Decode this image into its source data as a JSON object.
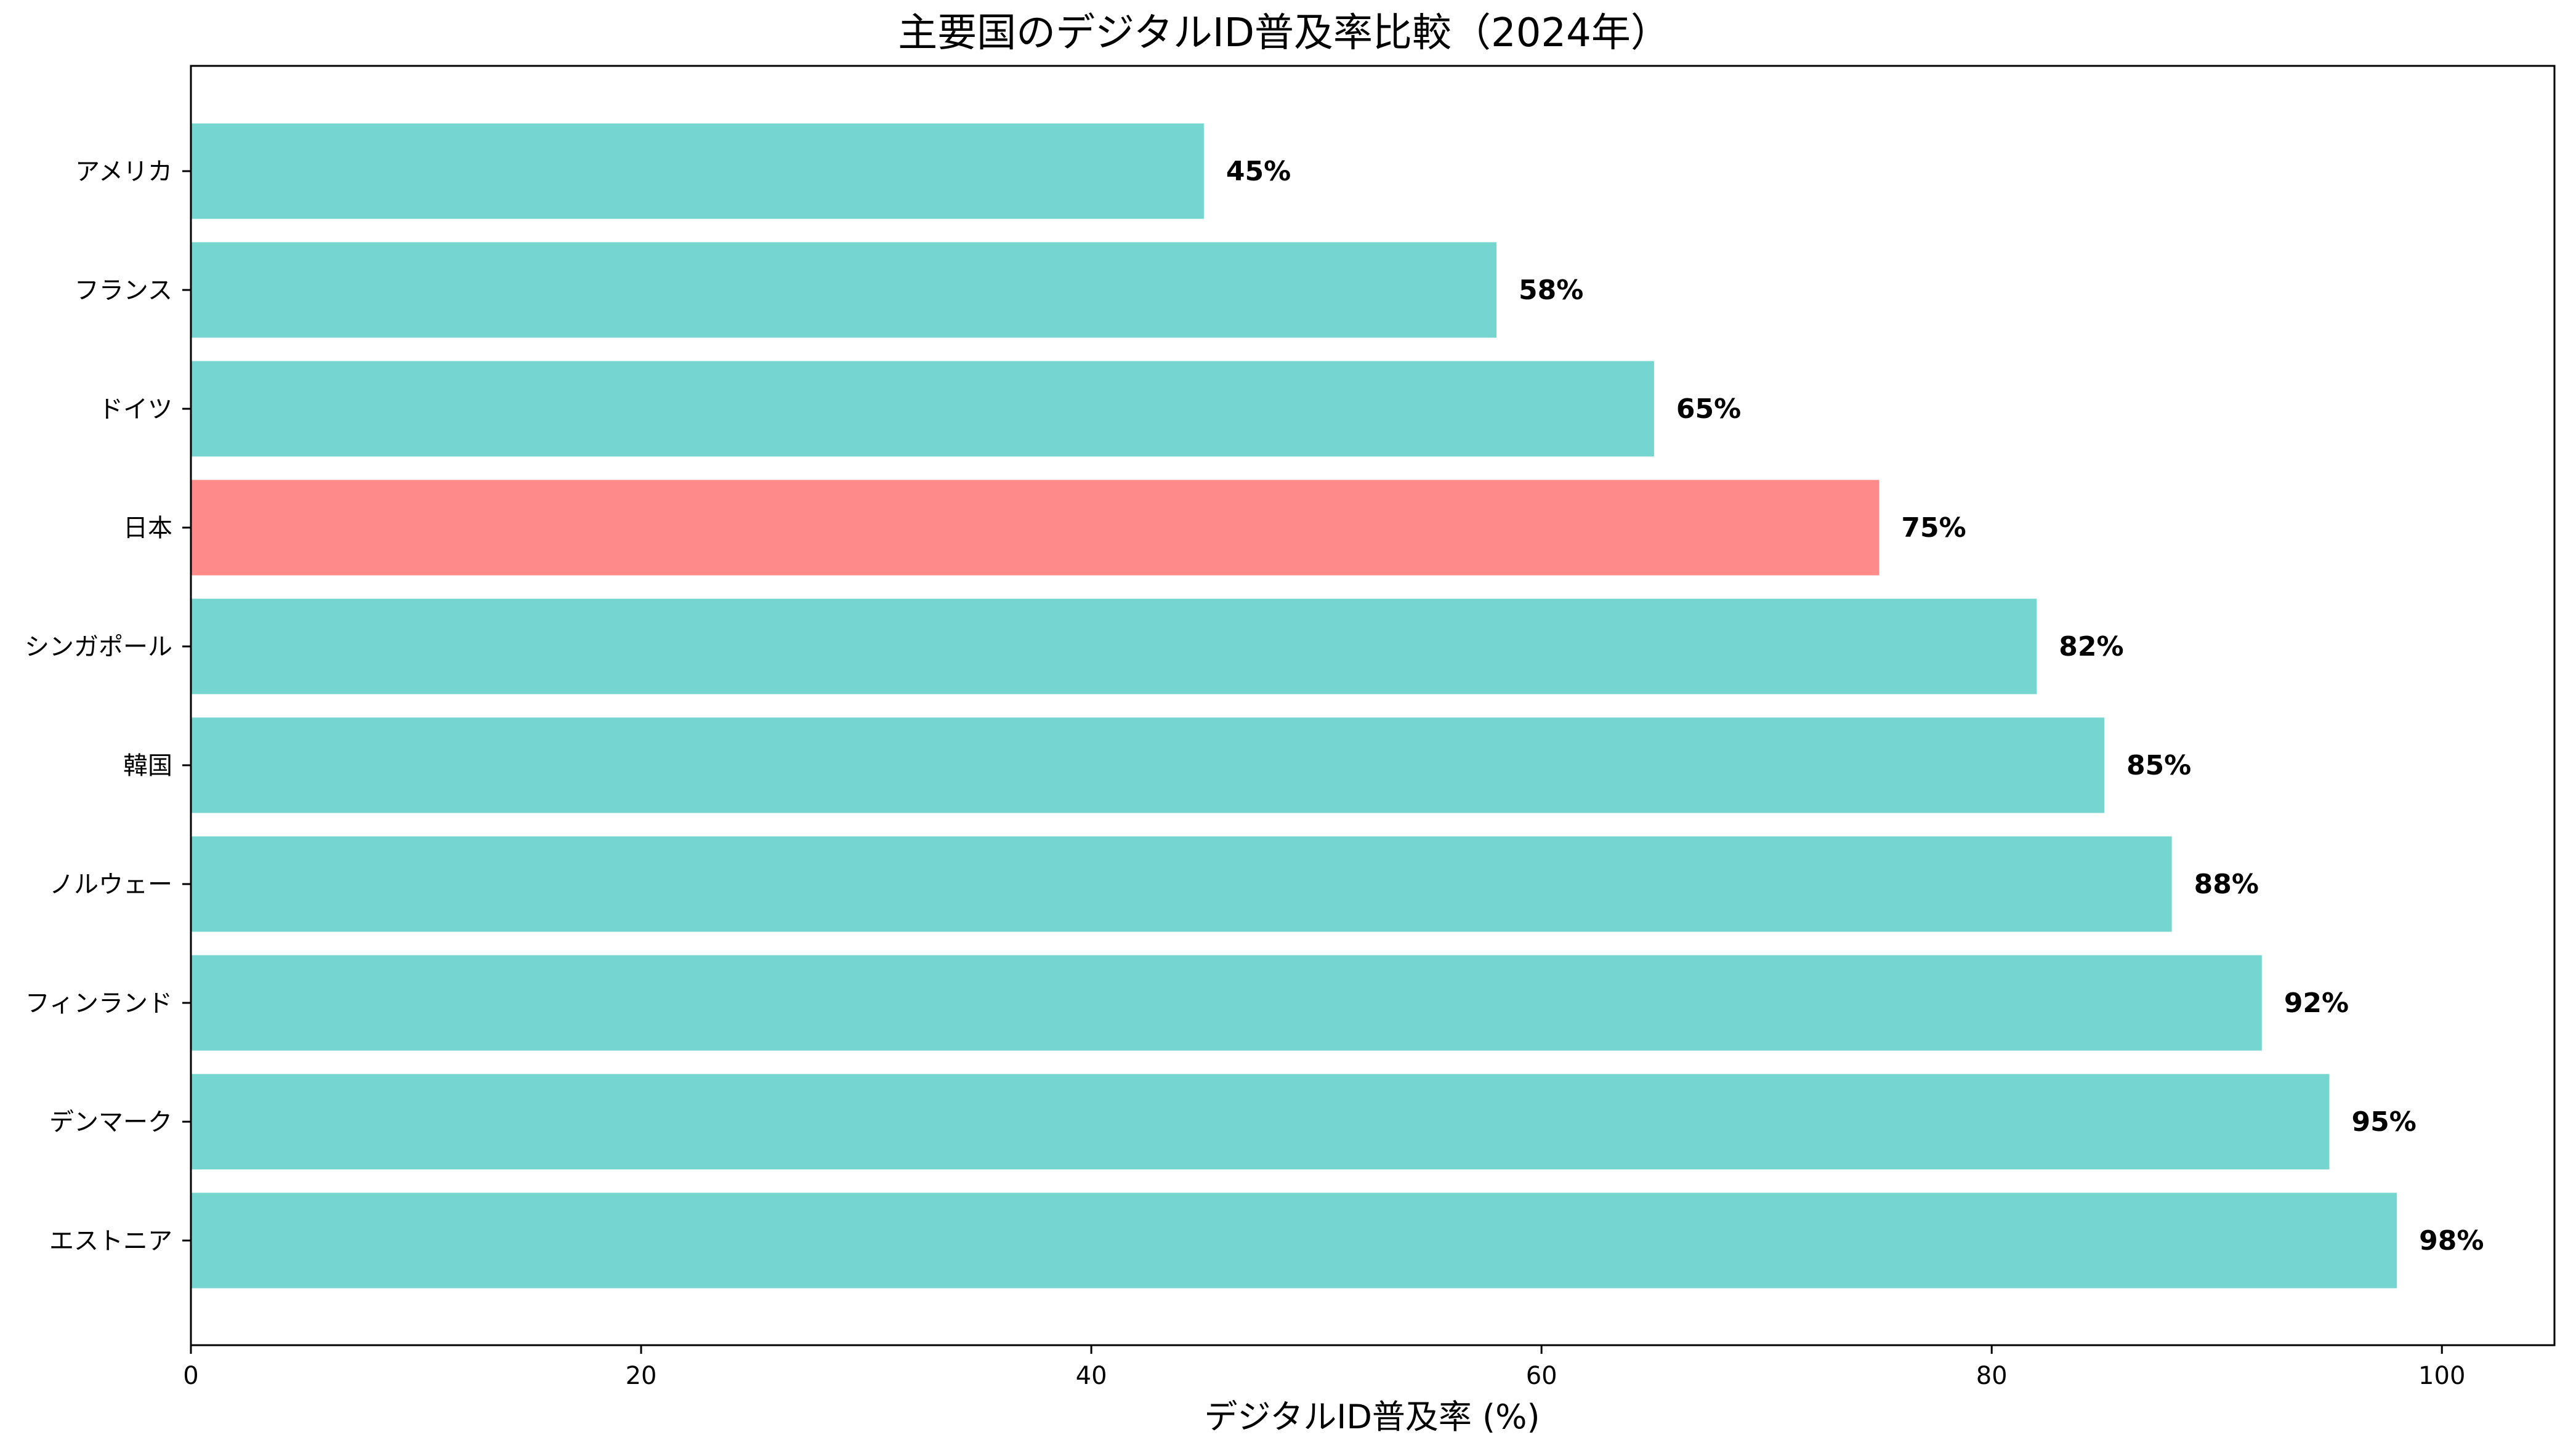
{
  "chart_data": {
    "type": "bar",
    "orientation": "horizontal",
    "title": "主要国のデジタルID普及率比較（2024年）",
    "xlabel": "デジタルID普及率 (%)",
    "ylabel": "",
    "xlim": [
      0,
      105
    ],
    "xticks": [
      0,
      20,
      40,
      60,
      80,
      100
    ],
    "grid": false,
    "categories": [
      "アメリカ",
      "フランス",
      "ドイツ",
      "日本",
      "シンガポール",
      "韓国",
      "ノルウェー",
      "フィンランド",
      "デンマーク",
      "エストニア"
    ],
    "values": [
      45,
      58,
      65,
      75,
      82,
      85,
      88,
      92,
      95,
      98
    ],
    "value_labels": [
      "45%",
      "58%",
      "65%",
      "75%",
      "82%",
      "85%",
      "88%",
      "92%",
      "95%",
      "98%"
    ],
    "colors": {
      "default_bar": "#74d6cf",
      "highlight_bar": "#ff8a8a",
      "highlight_label": "#ff0000"
    },
    "highlight_category": "日本"
  }
}
